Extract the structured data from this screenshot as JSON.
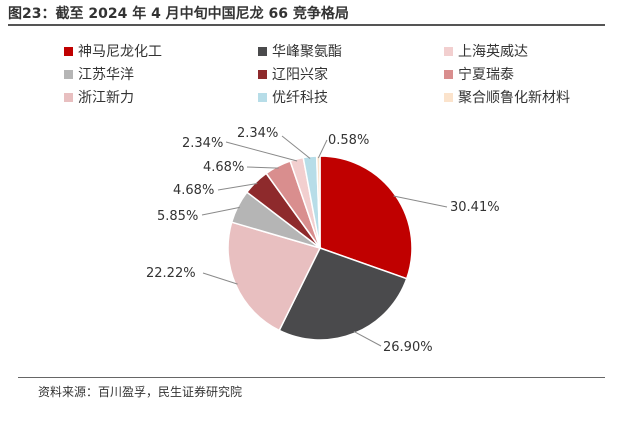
{
  "title": "图23：截至 2024 年 4 月中旬中国尼龙 66 竞争格局",
  "source": "资料来源：百川盈孚，民生证券研究院",
  "chart_data": {
    "type": "pie",
    "title": "图23：截至 2024 年 4 月中旬中国尼龙 66 竞争格局",
    "series": [
      {
        "name": "神马尼龙化工",
        "value": 30.41,
        "label": "30.41%",
        "color": "#c00000"
      },
      {
        "name": "华峰聚氨酯",
        "value": 26.9,
        "label": "26.90%",
        "color": "#4a4a4c"
      },
      {
        "name": "浙江新力",
        "value": 22.22,
        "label": "22.22%",
        "color": "#e8bfc0"
      },
      {
        "name": "江苏华洋",
        "value": 5.85,
        "label": "5.85%",
        "color": "#b5b5b5"
      },
      {
        "name": "辽阳兴家",
        "value": 4.68,
        "label": "4.68%",
        "color": "#8e2a2c"
      },
      {
        "name": "宁夏瑞泰",
        "value": 4.68,
        "label": "4.68%",
        "color": "#d98e8e"
      },
      {
        "name": "上海英威达",
        "value": 2.34,
        "label": "2.34%",
        "color": "#f2cfcf"
      },
      {
        "name": "优纤科技",
        "value": 2.34,
        "label": "2.34%",
        "color": "#b7dde8"
      },
      {
        "name": "聚合顺鲁化新材料",
        "value": 0.58,
        "label": "0.58%",
        "color": "#fbe3cc"
      }
    ],
    "legend": [
      {
        "name": "神马尼龙化工",
        "color": "#c00000"
      },
      {
        "name": "华峰聚氨酯",
        "color": "#4a4a4c"
      },
      {
        "name": "上海英威达",
        "color": "#f2cfcf"
      },
      {
        "name": "江苏华洋",
        "color": "#b5b5b5"
      },
      {
        "name": "辽阳兴家",
        "color": "#8e2a2c"
      },
      {
        "name": "宁夏瑞泰",
        "color": "#d98e8e"
      },
      {
        "name": "浙江新力",
        "color": "#e8bfc0"
      },
      {
        "name": "优纤科技",
        "color": "#b7dde8"
      },
      {
        "name": "聚合顺鲁化新材料",
        "color": "#fbe3cc"
      }
    ],
    "legend_position": "top"
  }
}
